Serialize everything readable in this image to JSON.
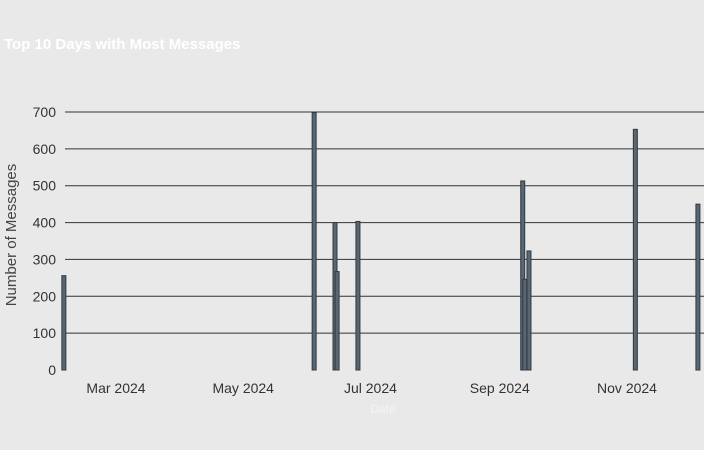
{
  "chart_data": {
    "type": "bar",
    "title": "Top 10 Days with Most Messages",
    "xlabel": "Date",
    "ylabel": "Number of Messages",
    "ylim": [
      0,
      700
    ],
    "yticks": [
      "0",
      "100",
      "200",
      "300",
      "400",
      "500",
      "600",
      "700"
    ],
    "xticks": [
      {
        "date": "2024-03-01",
        "label": "Mar 2024"
      },
      {
        "date": "2024-05-01",
        "label": "May 2024"
      },
      {
        "date": "2024-07-01",
        "label": "Jul 2024"
      },
      {
        "date": "2024-09-01",
        "label": "Sep 2024"
      },
      {
        "date": "2024-11-01",
        "label": "Nov 2024"
      }
    ],
    "x": [
      "2024-02-05",
      "2024-06-04",
      "2024-06-14",
      "2024-06-15",
      "2024-06-25",
      "2024-09-12",
      "2024-09-13",
      "2024-09-15",
      "2024-11-05",
      "2024-12-05"
    ],
    "values": [
      256,
      698,
      400,
      267,
      403,
      513,
      246,
      323,
      653,
      450
    ],
    "grid": "horizontal",
    "colors": {
      "bar": "#5a6670",
      "bar_edge": "#2e3a44",
      "grid": "#333333",
      "title": "#ffffff",
      "background": "#e9e9e9"
    }
  }
}
